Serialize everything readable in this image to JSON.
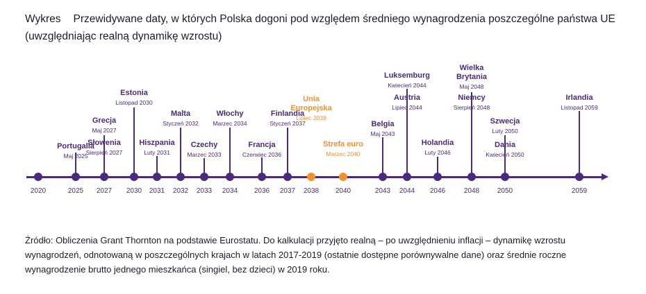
{
  "title": {
    "label": "Wykres",
    "text": "Przewidywane daty, w których Polska dogoni pod względem średniego wynagrodzenia poszczególne państwa UE (uwzględniając realną dynamikę wzrostu)"
  },
  "colors": {
    "primary": "#4b2a7d",
    "highlight": "#f2912e"
  },
  "chart_data": {
    "type": "timeline",
    "axis_ticks": [
      "2020",
      "2025",
      "2027",
      "2030",
      "2031",
      "2032",
      "2033",
      "2034",
      "2036",
      "2037",
      "2038",
      "2040",
      "2043",
      "2044",
      "2046",
      "2048",
      "2050",
      "2059"
    ],
    "events": [
      {
        "country": "Portugalia",
        "date": "Maj 2025",
        "year": "2025"
      },
      {
        "country": "Słowenia",
        "date": "Sierpień 2027",
        "year": "2027"
      },
      {
        "country": "Grecja",
        "date": "Maj 2027",
        "year": "2027"
      },
      {
        "country": "Estonia",
        "date": "Listopad 2030",
        "year": "2030"
      },
      {
        "country": "Hiszpania",
        "date": "Luty 2031",
        "year": "2031"
      },
      {
        "country": "Malta",
        "date": "Styczeń 2032",
        "year": "2032"
      },
      {
        "country": "Czechy",
        "date": "Marzec 2033",
        "year": "2033"
      },
      {
        "country": "Włochy",
        "date": "Marzec 2034",
        "year": "2034"
      },
      {
        "country": "Francja",
        "date": "Czerwiec 2036",
        "year": "2036"
      },
      {
        "country": "Finlandia",
        "date": "Styczeń 2037",
        "year": "2037"
      },
      {
        "country": "Unia Europejska",
        "date": "Lipiec 2038",
        "year": "2038",
        "highlight": true
      },
      {
        "country": "Strefa euro",
        "date": "Marzec 2040",
        "year": "2040",
        "highlight": true
      },
      {
        "country": "Belgia",
        "date": "Maj 2043",
        "year": "2043"
      },
      {
        "country": "Luksemburg",
        "date": "Kwiecień 2044",
        "year": "2044"
      },
      {
        "country": "Austria",
        "date": "Lipiec 2044",
        "year": "2044"
      },
      {
        "country": "Holandia",
        "date": "Luty 2046",
        "year": "2046"
      },
      {
        "country": "Wielka Brytania",
        "date": "Maj 2048",
        "year": "2048"
      },
      {
        "country": "Niemcy",
        "date": "Sierpień 2048",
        "year": "2048"
      },
      {
        "country": "Szwecja",
        "date": "Luty 2050",
        "year": "2050"
      },
      {
        "country": "Dania",
        "date": "Kwiecień 2050",
        "year": "2050"
      },
      {
        "country": "Irlandia",
        "date": "Listopad 2059",
        "year": "2059"
      }
    ]
  },
  "source": "Źródło: Obliczenia Grant Thornton na podstawie Eurostatu. Do kalkulacji przyjęto realną – po uwzględnieniu inflacji – dynamikę wzrostu wynagrodzeń, odnotowaną w poszczególnych krajach w latach 2017-2019 (ostatnie dostępne porównywalne dane) oraz średnie roczne wynagrodzenie brutto jednego mieszkańca (singiel, bez dzieci) w 2019 roku."
}
